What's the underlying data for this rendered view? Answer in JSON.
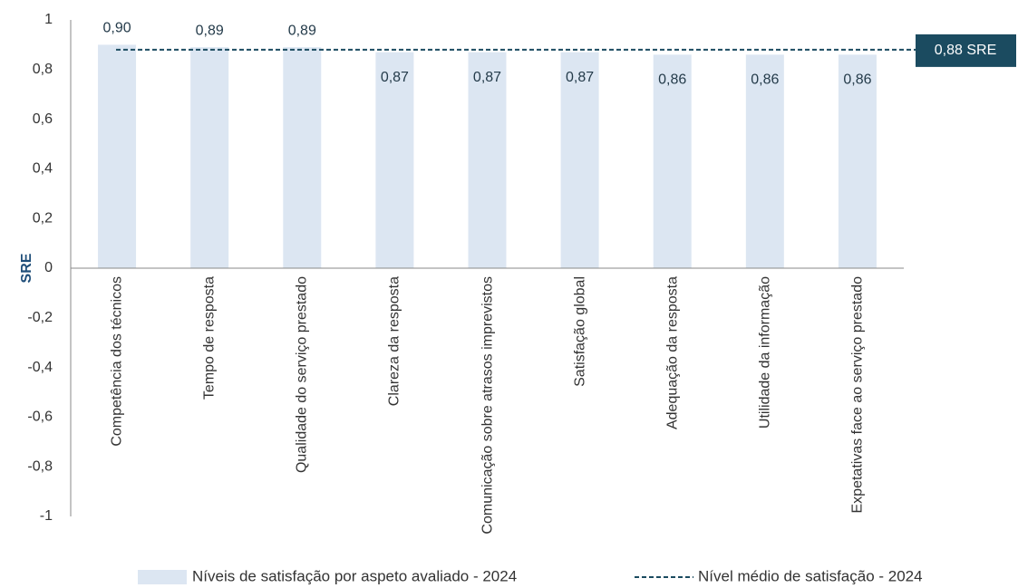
{
  "chart_data": {
    "type": "bar",
    "y_label": "SRE",
    "categories": [
      "Competência dos técnicos",
      "Tempo de resposta",
      "Qualidade do serviço prestado",
      "Clareza da resposta",
      "Comunicação sobre atrasos imprevistos",
      "Satisfação global",
      "Adequação da resposta",
      "Utilidade da informação",
      "Expetativas face ao serviço prestado"
    ],
    "series": [
      {
        "name": "Níveis de satisfação por aspeto avaliado - 2024",
        "color": "#dce6f2",
        "values": [
          0.9,
          0.89,
          0.89,
          0.87,
          0.87,
          0.87,
          0.86,
          0.86,
          0.86
        ],
        "value_labels": [
          "0,90",
          "0,89",
          "0,89",
          "0,87",
          "0,87",
          "0,87",
          "0,86",
          "0,86",
          "0,86"
        ]
      }
    ],
    "average": {
      "name": "Nível médio de satisfação - 2024",
      "value": 0.88,
      "label": "0,88 SRE",
      "color": "#1b4b60"
    },
    "ylim": [
      -1,
      1
    ],
    "yticks": [
      -1,
      {
        "value": -0.8,
        "label": "-0,8"
      },
      {
        "value": -0.6,
        "label": "-0,6"
      },
      {
        "value": -0.4,
        "label": "-0,4"
      },
      {
        "value": -0.2,
        "label": "-0,2"
      },
      0,
      {
        "value": 0.2,
        "label": "0,2"
      },
      {
        "value": 0.4,
        "label": "0,4"
      },
      {
        "value": 0.6,
        "label": "0,6"
      },
      {
        "value": 0.8,
        "label": "0,8"
      },
      1
    ],
    "grid": false
  }
}
